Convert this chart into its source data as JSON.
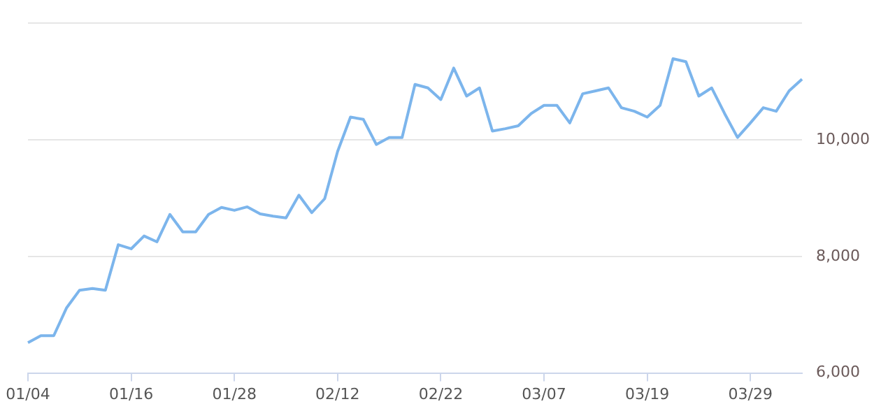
{
  "chart_data": {
    "type": "line",
    "categories": [
      "01/04",
      null,
      null,
      null,
      null,
      null,
      null,
      null,
      "01/16",
      null,
      null,
      null,
      null,
      null,
      null,
      null,
      "01/28",
      null,
      null,
      null,
      null,
      null,
      null,
      null,
      "02/12",
      null,
      null,
      null,
      null,
      null,
      null,
      null,
      "02/22",
      null,
      null,
      null,
      null,
      null,
      null,
      null,
      "03/07",
      null,
      null,
      null,
      null,
      null,
      null,
      null,
      "03/19",
      null,
      null,
      null,
      null,
      null,
      null,
      null,
      "03/29",
      null,
      null,
      null,
      null
    ],
    "series": [
      {
        "color": "#7cb5ec",
        "values": [
          6520,
          6640,
          6640,
          7120,
          7420,
          7450,
          7420,
          8200,
          8130,
          8350,
          8250,
          8720,
          8420,
          8420,
          8720,
          8840,
          8790,
          8850,
          8730,
          8690,
          8660,
          9050,
          8750,
          8990,
          9800,
          10390,
          10350,
          9920,
          10040,
          10040,
          10950,
          10890,
          10690,
          11230,
          10750,
          10890,
          10150,
          10190,
          10240,
          10450,
          10590,
          10590,
          10290,
          10790,
          10840,
          10890,
          10550,
          10490,
          10390,
          10590,
          11390,
          11340,
          10750,
          10890,
          10450,
          10040,
          10290,
          10550,
          10490,
          10840,
          11040
        ]
      }
    ],
    "ylim": [
      6000,
      12000
    ],
    "yticks": [
      {
        "value": 6000,
        "label": "6,000"
      },
      {
        "value": 8000,
        "label": "8,000"
      },
      {
        "value": 10000,
        "label": "10,000"
      },
      {
        "value": 12000,
        "label": null
      }
    ],
    "grid": "y",
    "legend": false,
    "marker": "none",
    "line_style": "solid"
  }
}
